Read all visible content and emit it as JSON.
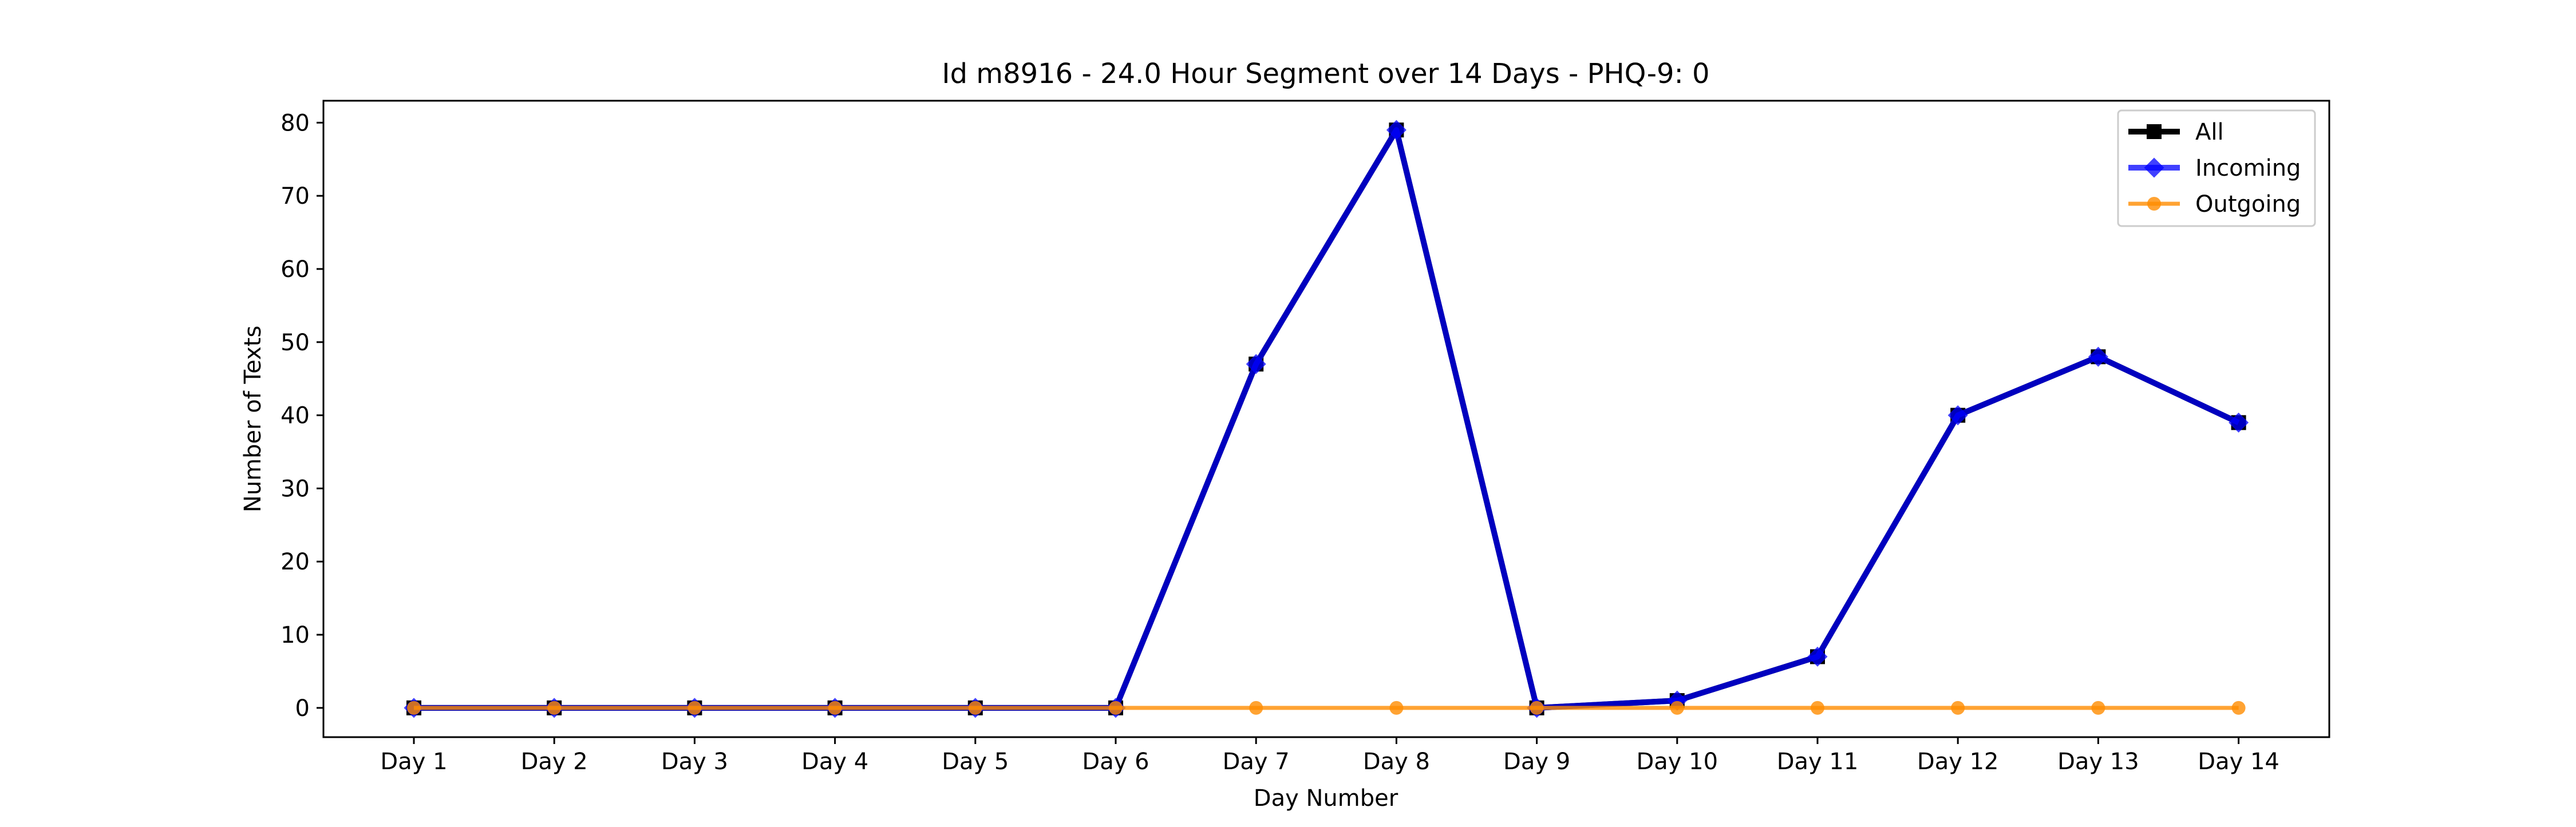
{
  "chart_data": {
    "type": "line",
    "title": "Id m8916 - 24.0 Hour Segment over 14 Days - PHQ-9: 0",
    "xlabel": "Day Number",
    "ylabel": "Number of Texts",
    "categories": [
      "Day 1",
      "Day 2",
      "Day 3",
      "Day 4",
      "Day 5",
      "Day 6",
      "Day 7",
      "Day 8",
      "Day 9",
      "Day 10",
      "Day 11",
      "Day 12",
      "Day 13",
      "Day 14"
    ],
    "ylim": [
      -4,
      83
    ],
    "yticks": [
      0,
      10,
      20,
      30,
      40,
      50,
      60,
      70,
      80
    ],
    "grid": false,
    "legend_position": "top-right",
    "series": [
      {
        "name": "All",
        "color": "#000000",
        "marker": "square",
        "values": [
          0,
          0,
          0,
          0,
          0,
          0,
          47,
          79,
          0,
          1,
          7,
          40,
          48,
          39
        ]
      },
      {
        "name": "Incoming",
        "color": "#0000ff",
        "marker": "diamond",
        "values": [
          0,
          0,
          0,
          0,
          0,
          0,
          47,
          79,
          0,
          1,
          7,
          40,
          48,
          39
        ]
      },
      {
        "name": "Outgoing",
        "color": "#ff8c00",
        "marker": "circle",
        "values": [
          0,
          0,
          0,
          0,
          0,
          0,
          0,
          0,
          0,
          0,
          0,
          0,
          0,
          0
        ]
      }
    ]
  }
}
